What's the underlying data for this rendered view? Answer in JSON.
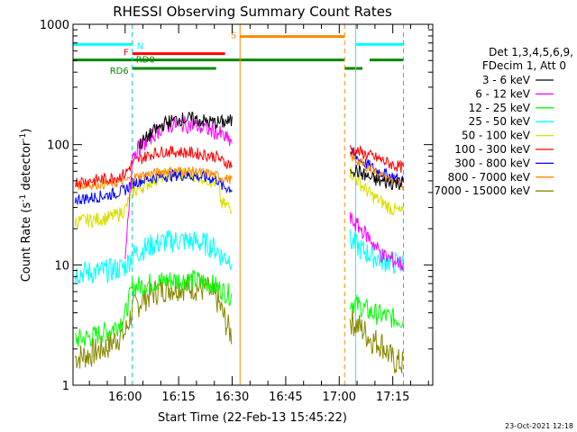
{
  "chart_data": {
    "type": "line",
    "title": "RHESSI Observing Summary Count Rates",
    "xlabel": "Start Time (22-Feb-13 15:45:22)",
    "ylabel": "Count Rate (s",
    "ylabel_sup": "-1",
    "ylabel_tail": " detector",
    "ylabel_end": ")",
    "yscale": "log",
    "ylim": [
      1,
      1000
    ],
    "y_ticks": [
      {
        "value": 1,
        "label": "1"
      },
      {
        "value": 10,
        "label": "10"
      },
      {
        "value": 100,
        "label": "100"
      },
      {
        "value": 1000,
        "label": "1000"
      }
    ],
    "xlim_minutes": [
      945.4,
      1046.2
    ],
    "x_ticks": [
      {
        "value": 960,
        "label": "16:00"
      },
      {
        "value": 975,
        "label": "16:15"
      },
      {
        "value": 990,
        "label": "16:30"
      },
      {
        "value": 1005,
        "label": "16:45"
      },
      {
        "value": 1020,
        "label": "17:00"
      },
      {
        "value": 1035,
        "label": "17:15"
      }
    ],
    "legend_header": [
      "Det 1,3,4,5,6,9,",
      "FDecim 1, Att 0"
    ],
    "legend_placement": "right",
    "footer_date": "23-Oct-2021 12:18",
    "series": [
      {
        "name": "3 - 6 keV",
        "color": "#000000",
        "points": [
          [
            964,
            100
          ],
          [
            968,
            128
          ],
          [
            971,
            150
          ],
          [
            975,
            163
          ],
          [
            979,
            163
          ],
          [
            983,
            155
          ],
          [
            986,
            152
          ],
          [
            990,
            156
          ]
        ],
        "post": [
          [
            1023,
            65
          ],
          [
            1026,
            58
          ],
          [
            1029,
            52
          ],
          [
            1032,
            49
          ],
          [
            1035,
            48
          ],
          [
            1038,
            48
          ]
        ]
      },
      {
        "name": "6 - 12 keV",
        "color": "#ff00ff",
        "points": [
          [
            960,
            10
          ],
          [
            962,
            83
          ],
          [
            965,
            100
          ],
          [
            968,
            122
          ],
          [
            971,
            143
          ],
          [
            975,
            148
          ],
          [
            979,
            145
          ],
          [
            983,
            135
          ],
          [
            986,
            126
          ],
          [
            989,
            108
          ],
          [
            990,
            106
          ]
        ],
        "post": [
          [
            1023,
            24
          ],
          [
            1026,
            20
          ],
          [
            1029,
            16
          ],
          [
            1032,
            12
          ],
          [
            1035,
            11
          ],
          [
            1038,
            10
          ]
        ]
      },
      {
        "name": "12 - 25 keV",
        "color": "#00ff00",
        "points": [
          [
            946,
            2.4
          ],
          [
            950,
            2.5
          ],
          [
            955,
            2.8
          ],
          [
            958,
            3.2
          ],
          [
            960,
            3.8
          ],
          [
            962,
            6.5
          ],
          [
            965,
            6.8
          ],
          [
            968,
            7.2
          ],
          [
            971,
            7.4
          ],
          [
            975,
            7.5
          ],
          [
            979,
            7.5
          ],
          [
            983,
            7.2
          ],
          [
            986,
            6.5
          ],
          [
            989,
            5.7
          ],
          [
            990,
            5.5
          ]
        ],
        "post": [
          [
            1023,
            5
          ],
          [
            1026,
            4.5
          ],
          [
            1029,
            4
          ],
          [
            1032,
            3.8
          ],
          [
            1035,
            3.6
          ],
          [
            1038,
            3.5
          ]
        ]
      },
      {
        "name": "25 - 50 keV",
        "color": "#00ffff",
        "points": [
          [
            946,
            8.6
          ],
          [
            950,
            8.7
          ],
          [
            955,
            8.9
          ],
          [
            958,
            9.3
          ],
          [
            960,
            9.7
          ],
          [
            962,
            12
          ],
          [
            965,
            13.5
          ],
          [
            968,
            14.8
          ],
          [
            971,
            15.6
          ],
          [
            975,
            16
          ],
          [
            979,
            15.7
          ],
          [
            983,
            14.8
          ],
          [
            986,
            13.2
          ],
          [
            987,
            11.8
          ],
          [
            990,
            11.2
          ]
        ],
        "post": [
          [
            1023,
            16
          ],
          [
            1026,
            13.5
          ],
          [
            1029,
            12
          ],
          [
            1032,
            11
          ],
          [
            1035,
            10.5
          ],
          [
            1038,
            10
          ]
        ]
      },
      {
        "name": "50 - 100 keV",
        "color": "#dddd00",
        "points": [
          [
            946,
            23
          ],
          [
            950,
            23.5
          ],
          [
            955,
            24.5
          ],
          [
            958,
            26
          ],
          [
            960,
            29
          ],
          [
            962,
            40
          ],
          [
            965,
            45
          ],
          [
            968,
            51
          ],
          [
            971,
            55
          ],
          [
            975,
            57
          ],
          [
            979,
            56
          ],
          [
            983,
            52
          ],
          [
            986,
            47
          ],
          [
            987,
            32
          ],
          [
            990,
            30
          ]
        ],
        "post": [
          [
            1023,
            60
          ],
          [
            1026,
            47
          ],
          [
            1029,
            38
          ],
          [
            1032,
            33
          ],
          [
            1035,
            29
          ],
          [
            1038,
            27
          ]
        ]
      },
      {
        "name": "100 - 300 keV",
        "color": "#ff0000",
        "points": [
          [
            946,
            49
          ],
          [
            950,
            50
          ],
          [
            955,
            52
          ],
          [
            958,
            54
          ],
          [
            960,
            57
          ],
          [
            962,
            70
          ],
          [
            965,
            78
          ],
          [
            968,
            85
          ],
          [
            971,
            88
          ],
          [
            975,
            87
          ],
          [
            979,
            85
          ],
          [
            983,
            82
          ],
          [
            986,
            79
          ],
          [
            987,
            73
          ],
          [
            990,
            68
          ]
        ],
        "post": [
          [
            1023,
            92
          ],
          [
            1026,
            86
          ],
          [
            1029,
            80
          ],
          [
            1032,
            74
          ],
          [
            1035,
            68
          ],
          [
            1038,
            64
          ]
        ]
      },
      {
        "name": "300 - 800 keV",
        "color": "#0000ff",
        "points": [
          [
            946,
            35
          ],
          [
            950,
            36
          ],
          [
            955,
            38
          ],
          [
            958,
            40
          ],
          [
            960,
            42
          ],
          [
            962,
            48
          ],
          [
            965,
            51
          ],
          [
            968,
            53
          ],
          [
            971,
            55
          ],
          [
            975,
            56
          ],
          [
            979,
            55
          ],
          [
            983,
            53
          ],
          [
            986,
            51
          ],
          [
            987,
            45
          ],
          [
            990,
            43
          ]
        ],
        "post": [
          [
            1023,
            86
          ],
          [
            1026,
            74
          ],
          [
            1029,
            65
          ],
          [
            1032,
            58
          ],
          [
            1035,
            54
          ],
          [
            1038,
            50
          ]
        ]
      },
      {
        "name": "800 - 7000 keV",
        "color": "#ff8800",
        "points": [
          [
            946,
            46
          ],
          [
            950,
            46
          ],
          [
            955,
            47
          ],
          [
            958,
            48
          ],
          [
            960,
            50
          ],
          [
            962,
            53
          ],
          [
            965,
            56
          ],
          [
            968,
            58
          ],
          [
            971,
            60
          ],
          [
            975,
            61
          ],
          [
            979,
            60
          ],
          [
            983,
            58
          ],
          [
            986,
            55
          ],
          [
            987,
            53
          ],
          [
            990,
            51
          ]
        ],
        "post": [
          [
            1023,
            80
          ],
          [
            1026,
            70
          ],
          [
            1029,
            62
          ],
          [
            1032,
            55
          ],
          [
            1035,
            50
          ],
          [
            1038,
            45
          ]
        ]
      },
      {
        "name": "7000 - 15000 keV",
        "color": "#888800",
        "points": [
          [
            946,
            1.7
          ],
          [
            950,
            1.8
          ],
          [
            955,
            2.1
          ],
          [
            958,
            2.5
          ],
          [
            960,
            2.7
          ],
          [
            962,
            4.2
          ],
          [
            965,
            5.2
          ],
          [
            968,
            5.9
          ],
          [
            971,
            6.4
          ],
          [
            975,
            6.6
          ],
          [
            979,
            6.6
          ],
          [
            983,
            6.2
          ],
          [
            986,
            5
          ],
          [
            989,
            2.9
          ],
          [
            990,
            2.6
          ]
        ],
        "post": [
          [
            1023,
            3.5
          ],
          [
            1026,
            3
          ],
          [
            1029,
            2.4
          ],
          [
            1032,
            2.2
          ],
          [
            1035,
            1.6
          ],
          [
            1038,
            1.5
          ]
        ]
      }
    ],
    "flag_bars": [
      {
        "label": "N",
        "color": "#00ffff",
        "value": 680,
        "segments": [
          [
            945.4,
            962
          ],
          [
            1024.6,
            1038
          ]
        ]
      },
      {
        "label": "F",
        "color": "#ff0000",
        "value": 570,
        "segments": [
          [
            962,
            988
          ]
        ]
      },
      {
        "label": "S",
        "color": "#ff8800",
        "value": 790,
        "segments": [
          [
            992.2,
            1021.5
          ]
        ]
      },
      {
        "label": "RD0",
        "color": "#008800",
        "value": 505,
        "segments": [
          [
            945.4,
            1021.5
          ],
          [
            1028.5,
            1038
          ]
        ]
      },
      {
        "label": "RD6",
        "color": "#008800",
        "value": 430,
        "segments": [
          [
            962,
            985.5
          ],
          [
            1021.5,
            1026.5
          ]
        ]
      }
    ],
    "vlines": [
      {
        "x": 962,
        "color": "#00cccc",
        "dash": true
      },
      {
        "x": 992.2,
        "color": "#ff8800",
        "dash": false
      },
      {
        "x": 1021.5,
        "color": "#ff8800",
        "dash": true
      },
      {
        "x": 1024.6,
        "color": "#00ffff",
        "dash": false
      },
      {
        "x": 1038,
        "color": "#00cccc",
        "dash": true
      },
      {
        "x": 945.4,
        "color": "#00ffff",
        "dash": false
      }
    ]
  }
}
